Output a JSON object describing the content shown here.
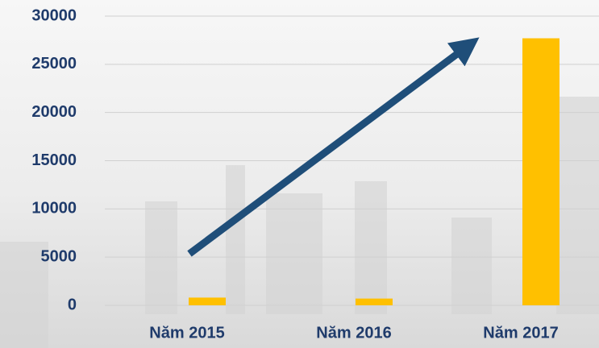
{
  "chart_data": {
    "type": "bar",
    "categories": [
      "Năm 2015",
      "Năm 2016",
      "Năm 2017"
    ],
    "values": [
      800,
      700,
      27700
    ],
    "color": "#ffc000",
    "ylim": [
      0,
      30000
    ],
    "yticks": [
      0,
      5000,
      10000,
      15000,
      20000,
      25000,
      30000
    ],
    "grid": true
  }
}
